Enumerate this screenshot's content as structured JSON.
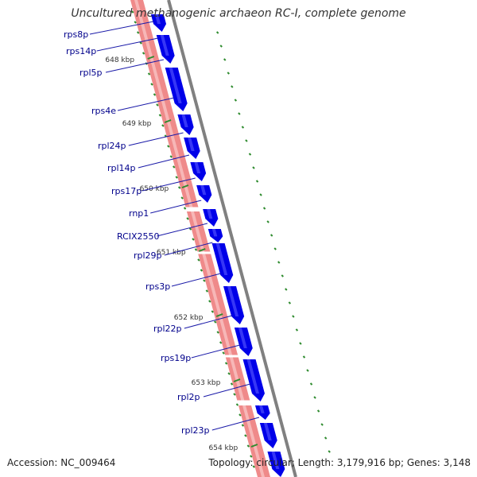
{
  "title": "Uncultured methanogenic archaeon RC-I, complete genome",
  "accession": "Accession: NC_009464",
  "topology": "Topology: circular; Length: 3,179,916 bp; Genes: 3,148",
  "colors": {
    "backbone": "#808080",
    "rna_feature": "#ef8a8a",
    "cds_feature": "#0000e8",
    "gc_tick": "#2e8b2e",
    "gene_label": "#00008b",
    "scale_label": "#333333"
  },
  "scale_labels": [
    "648 kbp",
    "649 kbp",
    "650 kbp",
    "651 kbp",
    "652 kbp",
    "653 kbp",
    "654 kbp"
  ],
  "gene_labels": [
    "rps8p",
    "rps14p",
    "rpl5p",
    "rps4e",
    "rpl24p",
    "rpl14p",
    "rps17p",
    "rnp1",
    "RCIX2550",
    "rpl29p",
    "rps3p",
    "rpl22p",
    "rps19p",
    "rpl2p",
    "rpl23p"
  ]
}
